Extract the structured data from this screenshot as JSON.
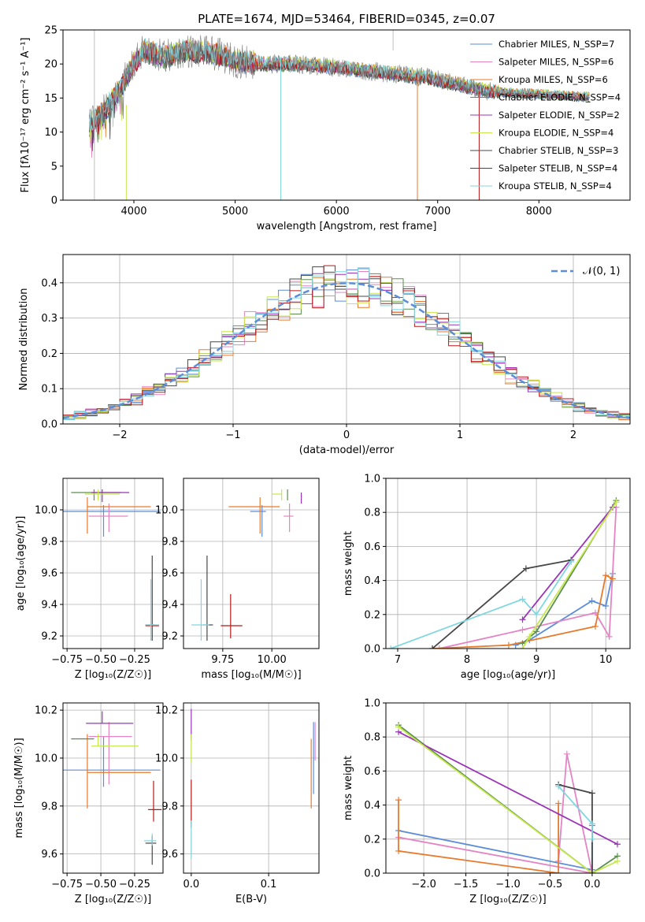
{
  "chart_data": [
    {
      "id": "spectrum",
      "type": "line",
      "title": "PLATE=1674, MJD=53464, FIBERID=0345, z=0.07",
      "xlabel": "wavelength [Angstrom, rest frame]",
      "ylabel": "Flux [fλ10⁻¹⁷ erg cm⁻² s⁻¹ A⁻¹]",
      "xlim": [
        3300,
        8900
      ],
      "ylim": [
        0,
        25
      ],
      "xticks": [
        4000,
        5000,
        6000,
        7000,
        8000
      ],
      "yticks": [
        0,
        5,
        10,
        15,
        20,
        25
      ],
      "grid": false,
      "legend_position": "top-right",
      "observed": {
        "color": "#808080",
        "x": [
          3560,
          3700,
          3850,
          4000,
          4100,
          4300,
          4500,
          4800,
          5000,
          5300,
          5600,
          6000,
          6300,
          6600,
          6900,
          7200,
          7500,
          7800,
          8100,
          8400,
          8500
        ],
        "y": [
          11,
          13,
          16,
          20,
          22,
          21,
          22,
          21.5,
          20.5,
          20,
          20,
          19.5,
          19,
          18.5,
          18,
          17,
          16,
          15.7,
          15.5,
          15.2,
          15.2
        ]
      },
      "series": [
        {
          "name": "Chabrier MILES, N_SSP=7",
          "color": "#5b8dd9"
        },
        {
          "name": "Salpeter MILES, N_SSP=6",
          "color": "#e584c4"
        },
        {
          "name": "Kroupa MILES, N_SSP=6",
          "color": "#e87a2c"
        },
        {
          "name": "Chabrier ELODIE, N_SSP=4",
          "color": "#5a8f50"
        },
        {
          "name": "Salpeter ELODIE, N_SSP=2",
          "color": "#9b34b8"
        },
        {
          "name": "Kroupa ELODIE, N_SSP=4",
          "color": "#c6e84c"
        },
        {
          "name": "Chabrier STELIB, N_SSP=3",
          "color": "#474747"
        },
        {
          "name": "Salpeter STELIB, N_SSP=4",
          "color": "#b81818"
        },
        {
          "name": "Kroupa STELIB, N_SSP=4",
          "color": "#7fd7e0"
        }
      ]
    },
    {
      "id": "residuals",
      "type": "line",
      "xlabel": "(data-model)/error",
      "ylabel": "Normed distribution",
      "xlim": [
        -2.5,
        2.5
      ],
      "ylim": [
        0,
        0.48
      ],
      "xticks": [
        -2,
        -1,
        0,
        1,
        2
      ],
      "yticks": [
        0.0,
        0.1,
        0.2,
        0.3,
        0.4
      ],
      "grid": true,
      "legend_position": "top-right",
      "reference": {
        "name": "𝒩(0, 1)",
        "color": "#5b8dd9",
        "style": "dashed"
      },
      "histograms": {
        "bin_width": 0.1,
        "x_start": -2.5,
        "series_colors": [
          "#5b8dd9",
          "#e584c4",
          "#e87a2c",
          "#5a8f50",
          "#9b34b8",
          "#c6e84c",
          "#474747",
          "#b81818",
          "#7fd7e0"
        ]
      }
    },
    {
      "id": "age-vs-Z",
      "type": "scatter",
      "xlabel": "Z [log₁₀(Z/Z☉)]",
      "ylabel": "age  [log₁₀(age/yr)]",
      "xlim": [
        -0.78,
        -0.04
      ],
      "ylim": [
        9.12,
        10.2
      ],
      "xticks": [
        -0.75,
        -0.5,
        -0.25
      ],
      "yticks": [
        9.2,
        9.4,
        9.6,
        9.8,
        10.0
      ],
      "grid": true,
      "points": [
        {
          "color": "#5b8dd9",
          "x": -0.48,
          "y": 9.99,
          "xerr": [
            0.3,
            0.42
          ],
          "yerr": [
            0.16,
            0.04
          ]
        },
        {
          "color": "#e584c4",
          "x": -0.44,
          "y": 9.96,
          "xerr": [
            0.15,
            0.14
          ],
          "yerr": [
            0.1,
            0.08
          ]
        },
        {
          "color": "#e87a2c",
          "x": -0.6,
          "y": 10.02,
          "xerr": [
            0.0,
            0.47
          ],
          "yerr": [
            0.17,
            0.06
          ]
        },
        {
          "color": "#5a8f50",
          "x": -0.55,
          "y": 10.11,
          "xerr": [
            0.17,
            0.2
          ],
          "yerr": [
            0.05,
            0.02
          ]
        },
        {
          "color": "#9b34b8",
          "x": -0.49,
          "y": 10.11,
          "xerr": [
            0.08,
            0.2
          ],
          "yerr": [
            0.06,
            0.02
          ]
        },
        {
          "color": "#c6e84c",
          "x": -0.52,
          "y": 10.1,
          "xerr": [
            0.1,
            0.16
          ],
          "yerr": [
            0.04,
            0.03
          ]
        },
        {
          "color": "#474747",
          "x": -0.12,
          "y": 9.27,
          "xerr": [
            0.05,
            0.02
          ],
          "yerr": [
            0.1,
            0.44
          ]
        },
        {
          "color": "#b81818",
          "x": -0.12,
          "y": 9.265,
          "xerr": [
            0.05,
            0.05
          ],
          "yerr": [
            0.0,
            0.0
          ]
        },
        {
          "color": "#7fd7e0",
          "x": -0.13,
          "y": 9.27,
          "xerr": [
            0.04,
            0.06
          ],
          "yerr": [
            0.1,
            0.29
          ]
        }
      ]
    },
    {
      "id": "age-vs-mass",
      "type": "scatter",
      "xlabel": "mass [log₁₀(M/M☉)]",
      "ylabel": "",
      "xlim": [
        9.55,
        10.24
      ],
      "ylim": [
        9.12,
        10.2
      ],
      "xticks": [
        9.75,
        10.0
      ],
      "yticks": [
        9.2,
        9.4,
        9.6,
        9.8,
        10.0
      ],
      "grid": true,
      "points": [
        {
          "color": "#5b8dd9",
          "x": 9.95,
          "y": 9.99,
          "xerr": [
            0.06,
            0.02
          ],
          "yerr": [
            0.16,
            0.04
          ]
        },
        {
          "color": "#e584c4",
          "x": 10.09,
          "y": 9.96,
          "xerr": [
            0.03,
            0.02
          ],
          "yerr": [
            0.1,
            0.08
          ]
        },
        {
          "color": "#e87a2c",
          "x": 9.94,
          "y": 10.02,
          "xerr": [
            0.16,
            0.1
          ],
          "yerr": [
            0.17,
            0.06
          ]
        },
        {
          "color": "#5a8f50",
          "x": 10.08,
          "y": 10.11,
          "xerr": [
            0.0,
            0.0
          ],
          "yerr": [
            0.05,
            0.02
          ]
        },
        {
          "color": "#9b34b8",
          "x": 10.15,
          "y": 10.1,
          "xerr": [
            0.0,
            0.0
          ],
          "yerr": [
            0.06,
            0.01
          ]
        },
        {
          "color": "#c6e84c",
          "x": 10.05,
          "y": 10.1,
          "xerr": [
            0.05,
            0.0
          ],
          "yerr": [
            0.04,
            0.03
          ]
        },
        {
          "color": "#474747",
          "x": 9.67,
          "y": 9.27,
          "xerr": [
            0.02,
            0.03
          ],
          "yerr": [
            0.1,
            0.44
          ]
        },
        {
          "color": "#b81818",
          "x": 9.79,
          "y": 9.265,
          "xerr": [
            0.05,
            0.06
          ],
          "yerr": [
            0.08,
            0.2
          ]
        },
        {
          "color": "#7fd7e0",
          "x": 9.64,
          "y": 9.27,
          "xerr": [
            0.05,
            0.04
          ],
          "yerr": [
            0.1,
            0.29
          ]
        }
      ]
    },
    {
      "id": "massweight-vs-age",
      "type": "line",
      "xlabel": "age  [log₁₀(age/yr)]",
      "ylabel": "mass weight",
      "xlim": [
        6.83,
        10.35
      ],
      "ylim": [
        0,
        1.0
      ],
      "xticks": [
        7,
        8,
        9,
        10
      ],
      "yticks": [
        0.0,
        0.2,
        0.4,
        0.6,
        0.8,
        1.0
      ],
      "grid": true,
      "series": [
        {
          "color": "#5b8dd9",
          "x": [
            8.7,
            8.9,
            9.8,
            10.0,
            10.1
          ],
          "y": [
            0.02,
            0.05,
            0.28,
            0.25,
            0.44
          ]
        },
        {
          "color": "#e584c4",
          "x": [
            7.6,
            8.8,
            9.85,
            10.05,
            10.15
          ],
          "y": [
            0.0,
            0.11,
            0.21,
            0.07,
            0.83
          ]
        },
        {
          "color": "#e87a2c",
          "x": [
            7.5,
            8.6,
            9.85,
            10.0,
            10.1
          ],
          "y": [
            0.0,
            0.02,
            0.13,
            0.43,
            0.41
          ]
        },
        {
          "color": "#5a8f50",
          "x": [
            8.8,
            9.0,
            10.15
          ],
          "y": [
            0.03,
            0.1,
            0.87
          ]
        },
        {
          "color": "#9b34b8",
          "x": [
            8.8,
            10.1
          ],
          "y": [
            0.17,
            0.83
          ]
        },
        {
          "color": "#c6e84c",
          "x": [
            8.8,
            8.9,
            10.15
          ],
          "y": [
            0.0,
            0.07,
            0.86
          ]
        },
        {
          "color": "#474747",
          "x": [
            7.5,
            8.85,
            9.5
          ],
          "y": [
            0.0,
            0.47,
            0.52
          ]
        },
        {
          "color": "#7fd7e0",
          "x": [
            6.9,
            8.8,
            9.0,
            9.5
          ],
          "y": [
            0.0,
            0.29,
            0.2,
            0.51
          ]
        }
      ]
    },
    {
      "id": "mass-vs-Z",
      "type": "scatter",
      "xlabel": "Z [log₁₀(Z/Z☉)]",
      "ylabel": "mass [log₁₀(M/M☉)]",
      "xlim": [
        -0.78,
        -0.04
      ],
      "ylim": [
        9.52,
        10.23
      ],
      "xticks": [
        -0.75,
        -0.5,
        -0.25
      ],
      "yticks": [
        9.6,
        9.8,
        10.0,
        10.2
      ],
      "grid": true,
      "points": [
        {
          "color": "#5b8dd9",
          "x": -0.48,
          "y": 9.95,
          "xerr": [
            0.3,
            0.42
          ],
          "yerr": [
            0.07,
            0.14
          ]
        },
        {
          "color": "#e584c4",
          "x": -0.44,
          "y": 10.09,
          "xerr": [
            0.15,
            0.17
          ],
          "yerr": [
            0.2,
            0.06
          ]
        },
        {
          "color": "#e87a2c",
          "x": -0.6,
          "y": 9.94,
          "xerr": [
            0.0,
            0.47
          ],
          "yerr": [
            0.15,
            0.16
          ]
        },
        {
          "color": "#5a8f50",
          "x": -0.55,
          "y": 10.08,
          "xerr": [
            0.17,
            0.0
          ],
          "yerr": [
            0.0,
            0.0
          ]
        },
        {
          "color": "#9b34b8",
          "x": -0.49,
          "y": 10.145,
          "xerr": [
            0.12,
            0.23
          ],
          "yerr": [
            0.0,
            0.05
          ]
        },
        {
          "color": "#c6e84c",
          "x": -0.52,
          "y": 10.05,
          "xerr": [
            0.05,
            0.3
          ],
          "yerr": [
            0.0,
            0.05
          ]
        },
        {
          "color": "#474747",
          "x": -0.12,
          "y": 9.645,
          "xerr": [
            0.05,
            0.03
          ],
          "yerr": [
            0.09,
            0.03
          ]
        },
        {
          "color": "#b81818",
          "x": -0.11,
          "y": 9.785,
          "xerr": [
            0.04,
            0.06
          ],
          "yerr": [
            0.05,
            0.12
          ]
        },
        {
          "color": "#7fd7e0",
          "x": -0.12,
          "y": 9.655,
          "xerr": [
            0.06,
            0.03
          ],
          "yerr": [
            0.02,
            0.03
          ]
        }
      ]
    },
    {
      "id": "mass-vs-EBV",
      "type": "scatter",
      "xlabel": "E(B-V)",
      "ylabel": "",
      "xlim": [
        -0.01,
        0.165
      ],
      "ylim": [
        9.52,
        10.23
      ],
      "xticks": [
        0.0,
        0.1
      ],
      "yticks": [
        9.6,
        9.8,
        10.0,
        10.2
      ],
      "grid": true,
      "points": [
        {
          "color": "#5b8dd9",
          "x": 0.158,
          "y": 9.95,
          "yerr": [
            0.1,
            0.2
          ]
        },
        {
          "color": "#e87a2c",
          "x": 0.155,
          "y": 9.94,
          "yerr": [
            0.15,
            0.14
          ]
        },
        {
          "color": "#e584c4",
          "x": 0.16,
          "y": 10.09,
          "yerr": [
            0.1,
            0.06
          ]
        },
        {
          "color": "#9b34b8",
          "x": 0.0,
          "y": 10.145,
          "yerr": [
            0.07,
            0.06
          ]
        },
        {
          "color": "#c6e84c",
          "x": 0.0,
          "y": 10.05,
          "yerr": [
            0.07,
            0.05
          ]
        },
        {
          "color": "#b81818",
          "x": 0.0,
          "y": 9.81,
          "yerr": [
            0.1,
            0.1
          ]
        },
        {
          "color": "#7fd7e0",
          "x": 0.0,
          "y": 9.66,
          "yerr": [
            0.08,
            0.08
          ]
        }
      ]
    },
    {
      "id": "massweight-vs-Z",
      "type": "line",
      "xlabel": "Z [log₁₀(Z/Z☉)]",
      "ylabel": "mass weight",
      "xlim": [
        -2.45,
        0.45
      ],
      "ylim": [
        0,
        1.0
      ],
      "xticks": [
        -2.0,
        -1.5,
        -1.0,
        -0.5,
        0.0
      ],
      "yticks": [
        0.0,
        0.2,
        0.4,
        0.6,
        0.8,
        1.0
      ],
      "grid": true,
      "series": [
        {
          "color": "#5b8dd9",
          "x": [
            -2.3,
            0.0,
            0.0
          ],
          "y": [
            0.25,
            0.02,
            0.28
          ]
        },
        {
          "color": "#e584c4",
          "x": [
            -2.3,
            0.0,
            -0.3,
            -0.4
          ],
          "y": [
            0.21,
            0.0,
            0.7,
            0.07
          ]
        },
        {
          "color": "#e87a2c",
          "x": [
            -2.3,
            -2.3,
            -0.4,
            -0.4
          ],
          "y": [
            0.43,
            0.13,
            0.0,
            0.41
          ]
        },
        {
          "color": "#5a8f50",
          "x": [
            -2.3,
            0.0,
            0.3
          ],
          "y": [
            0.87,
            0.0,
            0.1
          ]
        },
        {
          "color": "#9b34b8",
          "x": [
            -2.3,
            0.3
          ],
          "y": [
            0.83,
            0.17
          ]
        },
        {
          "color": "#c6e84c",
          "x": [
            -2.3,
            0.0,
            0.3
          ],
          "y": [
            0.86,
            0.0,
            0.07
          ]
        },
        {
          "color": "#474747",
          "x": [
            -0.4,
            0.0,
            0.0
          ],
          "y": [
            0.52,
            0.47,
            0.0
          ]
        },
        {
          "color": "#7fd7e0",
          "x": [
            -0.4,
            0.0,
            0.0
          ],
          "y": [
            0.51,
            0.29,
            0.2
          ]
        }
      ]
    }
  ]
}
